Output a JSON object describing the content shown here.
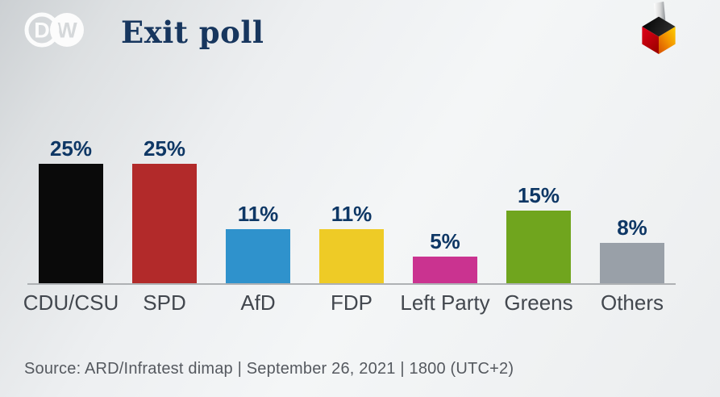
{
  "header": {
    "title": "Exit poll",
    "logo_letters": {
      "left": "D",
      "right": "W"
    }
  },
  "chart_data": {
    "type": "bar",
    "title": "Exit poll",
    "categories": [
      "CDU/CSU",
      "SPD",
      "AfD",
      "FDP",
      "Left Party",
      "Greens",
      "Others"
    ],
    "values": [
      25,
      25,
      11,
      11,
      5,
      15,
      8
    ],
    "value_labels": [
      "25%",
      "25%",
      "11%",
      "11%",
      "5%",
      "15%",
      "8%"
    ],
    "bar_colors": [
      "#0a0a0a",
      "#b22a2a",
      "#2f92cc",
      "#eecb26",
      "#ca3390",
      "#70a51e",
      "#99a0a8"
    ],
    "xlabel": "",
    "ylabel": "",
    "ylim": [
      0,
      27
    ],
    "grid": false,
    "legend": false,
    "axis_color": "#aeb1b4"
  },
  "theme": {
    "navy": "#0e3765",
    "title_navy": "#17365e",
    "label_gray": "#42474e",
    "source_gray": "#55595f",
    "axis_gray": "#aeb1b4",
    "logo_white": "#ffffff",
    "logo_counter_gray": "#d5d8da",
    "flag_black": "#111111",
    "flag_red": "#e2001a",
    "flag_gold": "#fdcf00"
  },
  "footer": {
    "source_line": "Source: ARD/Infratest dimap | September 26, 2021 | 1800 (UTC+2)"
  }
}
